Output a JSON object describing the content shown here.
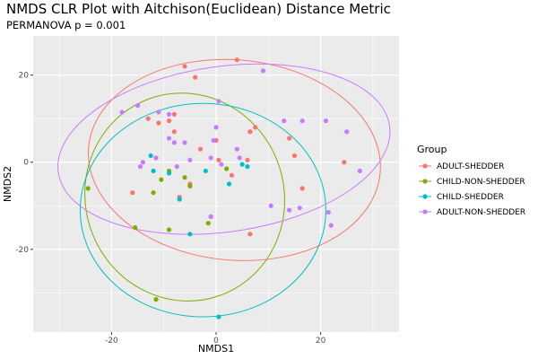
{
  "chart_data": {
    "type": "scatter",
    "title": "NMDS CLR Plot with Aitchison(Euclidean) Distance Metric",
    "subtitle": "PERMANOVA p = 0.001",
    "xlabel": "NMDS1",
    "ylabel": "NMDS2",
    "xlim": [
      -35,
      35
    ],
    "ylim": [
      -39,
      29
    ],
    "x_ticks": [
      -20,
      0,
      20
    ],
    "y_ticks": [
      -20,
      0,
      20
    ],
    "grid": true,
    "background": "#ebebeb",
    "legend": {
      "title": "Group",
      "placement": "right"
    },
    "series": [
      {
        "name": "ADULT-SHEDDER",
        "color": "#f8766d",
        "points": [
          [
            -6,
            22
          ],
          [
            -4,
            19.5
          ],
          [
            4,
            23.5
          ],
          [
            -8,
            11
          ],
          [
            -9,
            9.5
          ],
          [
            -11,
            9
          ],
          [
            -13,
            10
          ],
          [
            -8,
            7
          ],
          [
            -3,
            3
          ],
          [
            0,
            5
          ],
          [
            -16,
            -7
          ],
          [
            0.5,
            0.5
          ],
          [
            6,
            0.5
          ],
          [
            6.5,
            7
          ],
          [
            7.5,
            8
          ],
          [
            14,
            5.5
          ],
          [
            15,
            1.5
          ],
          [
            16.5,
            -6
          ],
          [
            24.5,
            0
          ],
          [
            6.5,
            -16.5
          ],
          [
            -1,
            -12.5
          ],
          [
            -7,
            -8
          ],
          [
            -5,
            -5
          ],
          [
            3,
            -3
          ]
        ],
        "ellipse": {
          "cx": 3.5,
          "cy": 0.5,
          "rx": 28,
          "ry": 23,
          "angle_deg": -5
        }
      },
      {
        "name": "CHILD-NON-SHEDDER",
        "color": "#7cae00",
        "points": [
          [
            -24.5,
            -6
          ],
          [
            -15.5,
            -15
          ],
          [
            -12,
            -7
          ],
          [
            -10.5,
            -4
          ],
          [
            -9,
            -2
          ],
          [
            -6,
            -3.5
          ],
          [
            -5,
            -5.5
          ],
          [
            2,
            -1.5
          ],
          [
            -1.5,
            -14
          ],
          [
            -9,
            -15.5
          ],
          [
            -11.5,
            -31.5
          ]
        ],
        "ellipse": {
          "cx": -6,
          "cy": -8,
          "rx": 19,
          "ry": 24,
          "angle_deg": 20
        }
      },
      {
        "name": "CHILD-SHEDDER",
        "color": "#00bfc4",
        "points": [
          [
            -12.5,
            1.5
          ],
          [
            -12,
            -2
          ],
          [
            -9,
            -2.5
          ],
          [
            -7,
            -8.5
          ],
          [
            -2,
            -2
          ],
          [
            2.5,
            -5
          ],
          [
            5,
            -0.5
          ],
          [
            6,
            -1
          ],
          [
            -5,
            -16.5
          ],
          [
            0.5,
            -35.5
          ]
        ],
        "ellipse": {
          "cx": -2.5,
          "cy": -11,
          "rx": 23.5,
          "ry": 24.5,
          "angle_deg": 0
        }
      },
      {
        "name": "ADULT-NON-SHEDDER",
        "color": "#c77cff",
        "points": [
          [
            -18,
            11.5
          ],
          [
            -15,
            13
          ],
          [
            -11,
            11.5
          ],
          [
            -9,
            11
          ],
          [
            -9,
            5.5
          ],
          [
            -8,
            4.5
          ],
          [
            -6,
            4.5
          ],
          [
            -11.5,
            1
          ],
          [
            -14.5,
            -1
          ],
          [
            -14,
            0
          ],
          [
            -7.5,
            -1
          ],
          [
            -5,
            0.5
          ],
          [
            -1,
            1
          ],
          [
            0.5,
            14
          ],
          [
            0,
            8
          ],
          [
            -0.5,
            5
          ],
          [
            1,
            -0.5
          ],
          [
            4.5,
            1
          ],
          [
            4,
            3
          ],
          [
            9,
            21
          ],
          [
            13,
            9.5
          ],
          [
            16.5,
            9.5
          ],
          [
            21,
            9.5
          ],
          [
            25,
            7
          ],
          [
            27.5,
            -2
          ],
          [
            10.5,
            -10
          ],
          [
            14,
            -11
          ],
          [
            16,
            -10.5
          ],
          [
            21.5,
            -11.5
          ],
          [
            22,
            -14.5
          ],
          [
            -1,
            -12.5
          ]
        ],
        "ellipse": {
          "cx": 1.5,
          "cy": 3,
          "rx": 32,
          "ry": 19,
          "angle_deg": 8
        }
      }
    ]
  }
}
